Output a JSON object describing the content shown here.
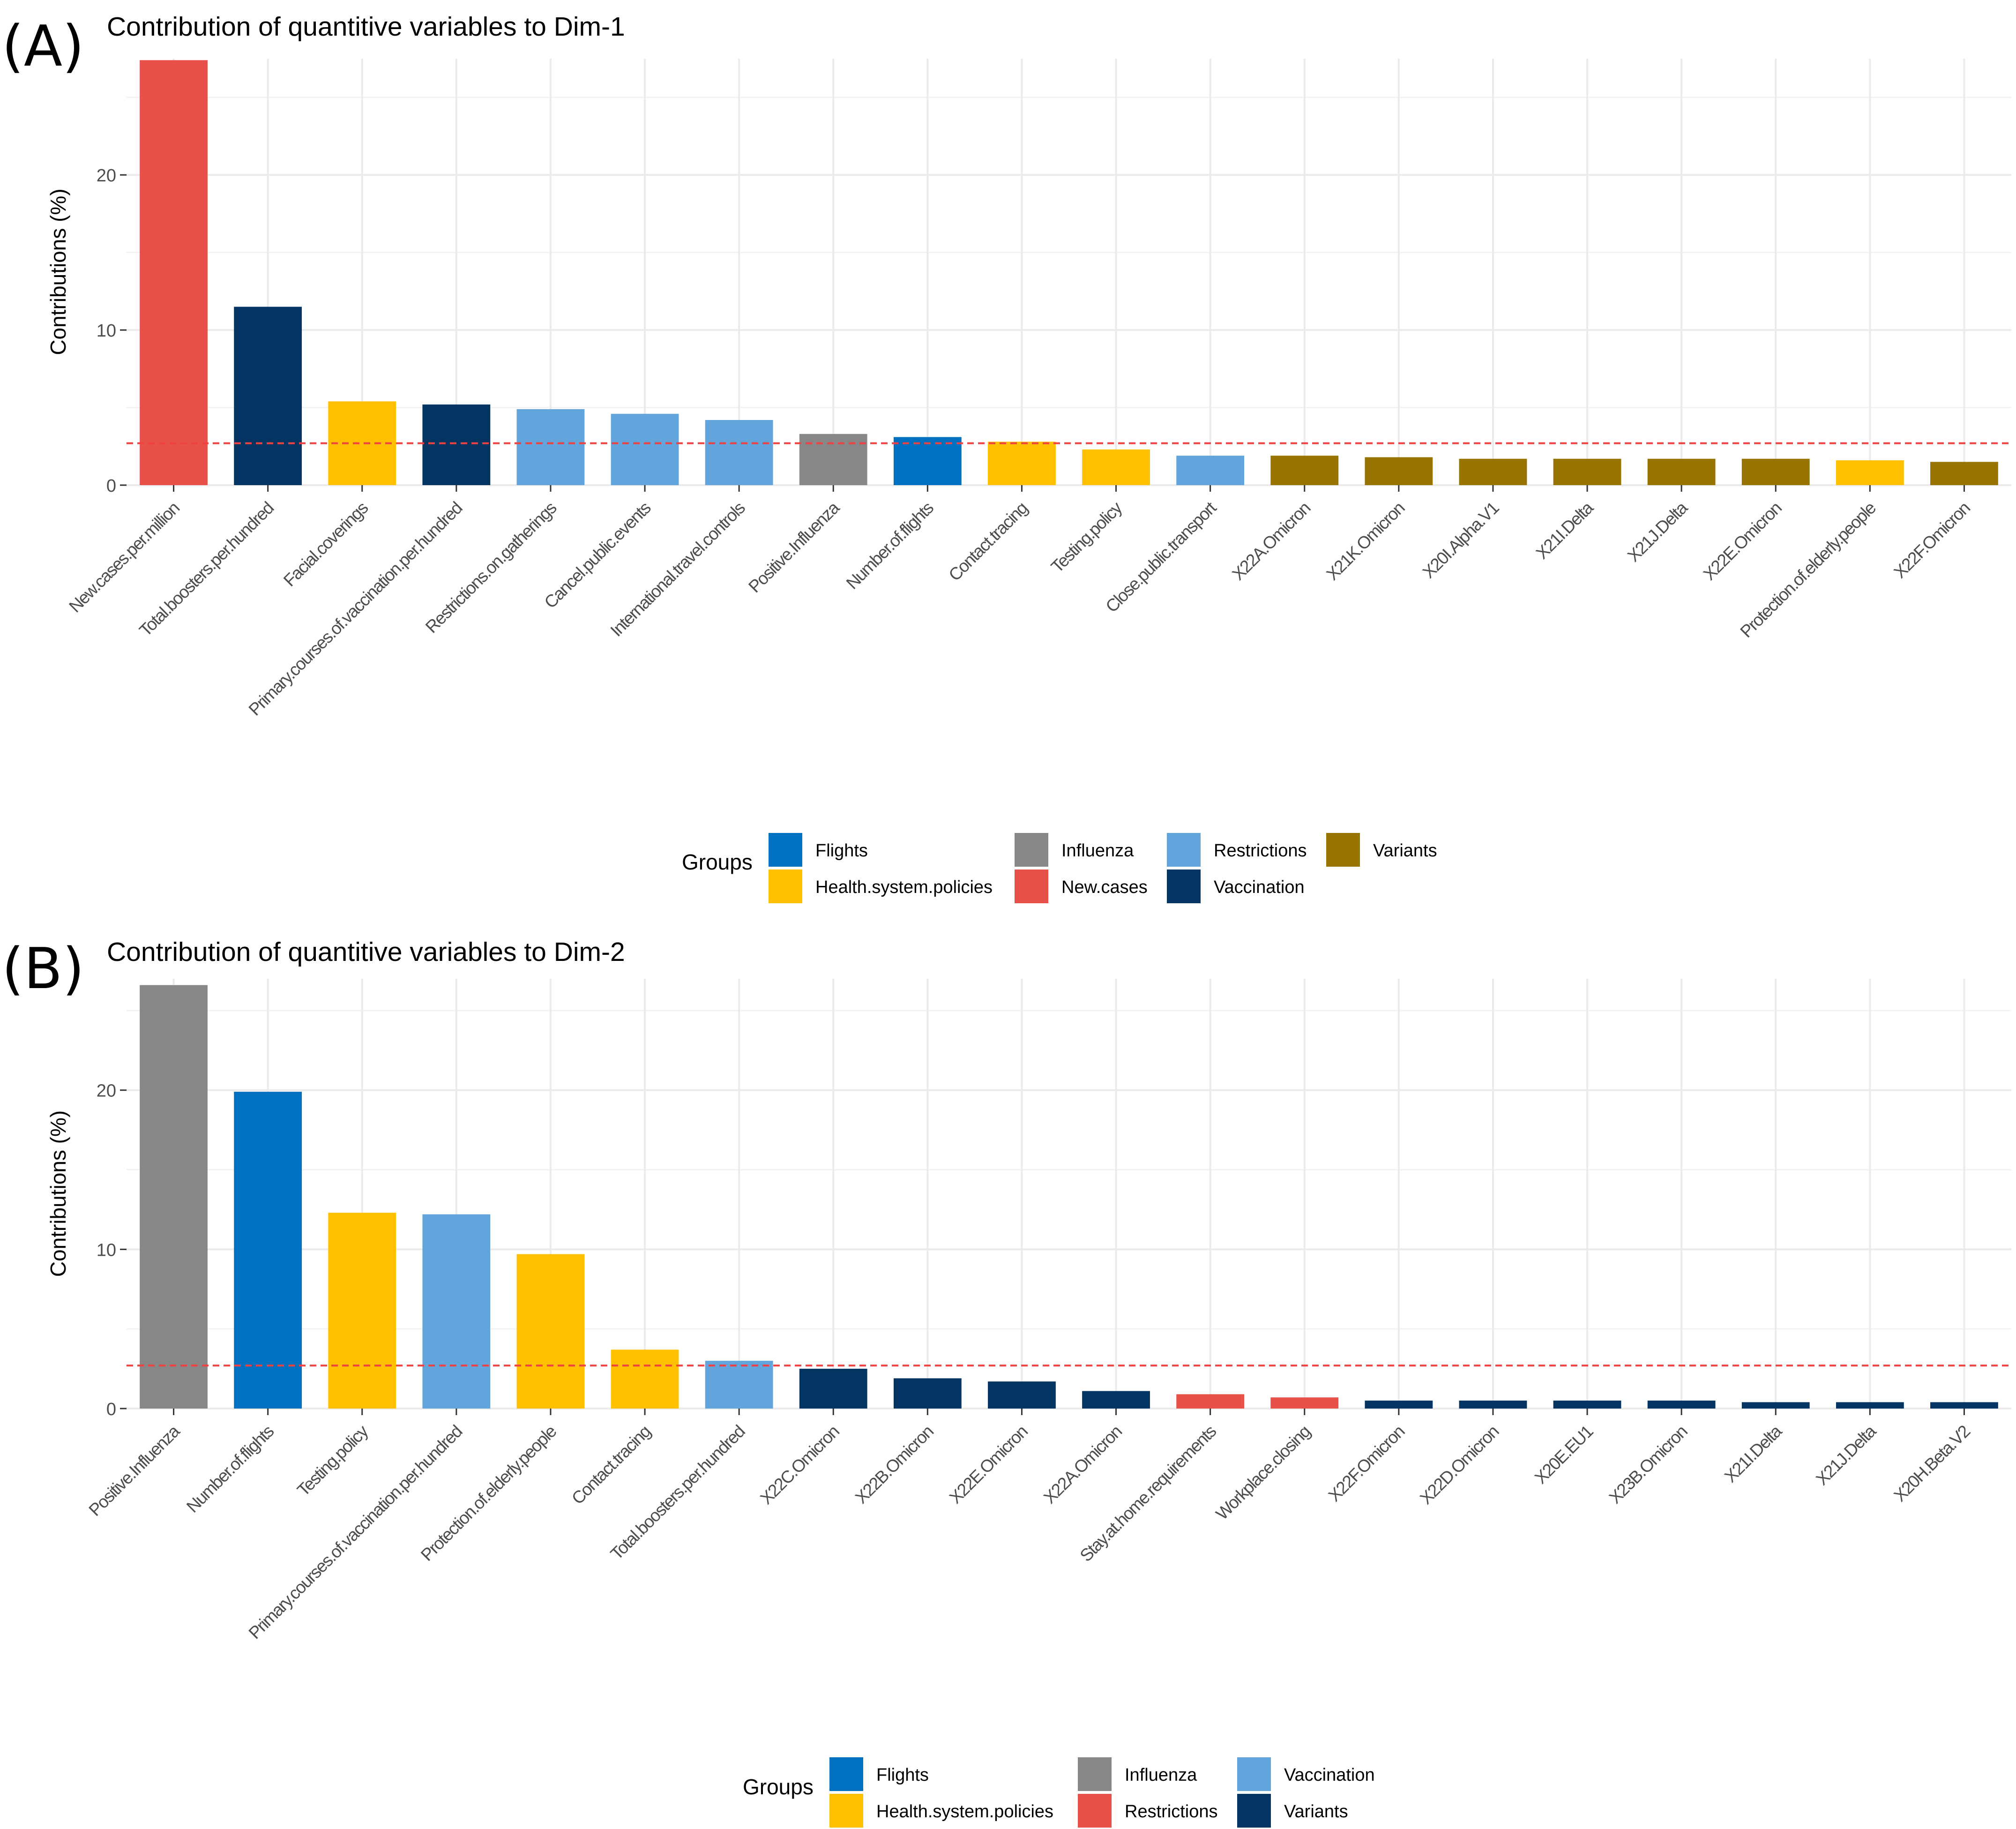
{
  "panels": [
    {
      "label": "(A)",
      "title": "Contribution of quantitive variables to Dim-1"
    },
    {
      "label": "(B)",
      "title": "Contribution of quantitive variables to Dim-2"
    }
  ],
  "colors": {
    "Flights": "#0070C0",
    "Health.system.policies": "#FFC000",
    "Influenza": "#878787",
    "New.cases": "#E8504A",
    "Restrictions": "#62A5DC",
    "Vaccination": "#043461",
    "Variants": "#977400",
    "Restrictions_B": "#E8504A",
    "Vaccination_B": "#62A5DC",
    "Variants_B": "#043461",
    "reference_line": "#F04040",
    "grid": "#EBEBEB"
  },
  "chart_data": [
    {
      "type": "bar",
      "title": "Contribution of quantitive variables to Dim-1",
      "xlabel": "",
      "ylabel": "Contributions (%)",
      "ylim": [
        0,
        27.5
      ],
      "yticks": [
        0,
        10,
        20
      ],
      "reference_line": 2.7,
      "categories": [
        "New.cases.per.million",
        "Total.boosters.per.hundred",
        "Facial.coverings",
        "Primary.courses.of.vaccination.per.hundred",
        "Restrictions.on.gatherings",
        "Cancel.public.events",
        "International.travel.controls",
        "Positive.Influenza",
        "Number.of.flights",
        "Contact.tracing",
        "Testing.policy",
        "Close.public.transport",
        "X22A.Omicron",
        "X21K.Omicron",
        "X20I.Alpha.V1",
        "X21I.Delta",
        "X21J.Delta",
        "X22E.Omicron",
        "Protection.of.elderly.people",
        "X22F.Omicron"
      ],
      "values": [
        27.4,
        11.5,
        5.4,
        5.2,
        4.9,
        4.6,
        4.2,
        3.3,
        3.1,
        2.8,
        2.3,
        1.9,
        1.9,
        1.8,
        1.7,
        1.7,
        1.7,
        1.7,
        1.6,
        1.5
      ],
      "groups": [
        "New.cases",
        "Vaccination",
        "Health.system.policies",
        "Vaccination",
        "Restrictions",
        "Restrictions",
        "Restrictions",
        "Influenza",
        "Flights",
        "Health.system.policies",
        "Health.system.policies",
        "Restrictions",
        "Variants",
        "Variants",
        "Variants",
        "Variants",
        "Variants",
        "Variants",
        "Health.system.policies",
        "Variants"
      ],
      "legend": {
        "title": "Groups",
        "entries": [
          {
            "name": "Flights",
            "color": "#0070C0"
          },
          {
            "name": "Health.system.policies",
            "color": "#FFC000"
          },
          {
            "name": "Influenza",
            "color": "#878787"
          },
          {
            "name": "New.cases",
            "color": "#E8504A"
          },
          {
            "name": "Restrictions",
            "color": "#62A5DC"
          },
          {
            "name": "Vaccination",
            "color": "#043461"
          },
          {
            "name": "Variants",
            "color": "#977400"
          }
        ]
      }
    },
    {
      "type": "bar",
      "title": "Contribution of quantitive variables to Dim-2",
      "xlabel": "",
      "ylabel": "Contributions (%)",
      "ylim": [
        0,
        27.0
      ],
      "yticks": [
        0,
        10,
        20
      ],
      "reference_line": 2.7,
      "categories": [
        "Positive.Influenza",
        "Number.of.flights",
        "Testing.policy",
        "Primary.courses.of.vaccination.per.hundred",
        "Protection.of.elderly.people",
        "Contact.tracing",
        "Total.boosters.per.hundred",
        "X22C.Omicron",
        "X22B.Omicron",
        "X22E.Omicron",
        "X22A.Omicron",
        "Stay.at.home.requirements",
        "Workplace.closing",
        "X22F.Omicron",
        "X22D.Omicron",
        "X20E.EU1",
        "X23B.Omicron",
        "X21I.Delta",
        "X21J.Delta",
        "X20H.Beta.V2"
      ],
      "values": [
        26.6,
        19.9,
        12.3,
        12.2,
        9.7,
        3.7,
        3.0,
        2.5,
        1.9,
        1.7,
        1.1,
        0.9,
        0.7,
        0.5,
        0.5,
        0.5,
        0.5,
        0.4,
        0.4,
        0.4
      ],
      "groups": [
        "Influenza",
        "Flights",
        "Health.system.policies",
        "Vaccination",
        "Health.system.policies",
        "Health.system.policies",
        "Vaccination",
        "Variants",
        "Variants",
        "Variants",
        "Variants",
        "Restrictions",
        "Restrictions",
        "Variants",
        "Variants",
        "Variants",
        "Variants",
        "Variants",
        "Variants",
        "Variants"
      ],
      "legend": {
        "title": "Groups",
        "entries": [
          {
            "name": "Flights",
            "color": "#0070C0"
          },
          {
            "name": "Health.system.policies",
            "color": "#FFC000"
          },
          {
            "name": "Influenza",
            "color": "#878787"
          },
          {
            "name": "Restrictions",
            "color": "#E8504A"
          },
          {
            "name": "Vaccination",
            "color": "#62A5DC"
          },
          {
            "name": "Variants",
            "color": "#043461"
          }
        ]
      }
    }
  ]
}
